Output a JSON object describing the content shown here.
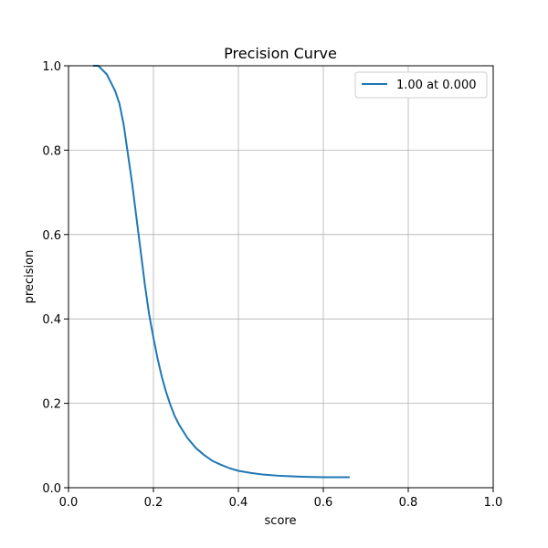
{
  "chart_data": {
    "type": "line",
    "title": "Precision Curve",
    "xlabel": "score",
    "ylabel": "precision",
    "xlim": [
      0.0,
      1.0
    ],
    "ylim": [
      0.0,
      1.0
    ],
    "grid": true,
    "legend_position": "top-right",
    "xticks": [
      0.0,
      0.2,
      0.4,
      0.6,
      0.8,
      1.0
    ],
    "yticks": [
      0.0,
      0.2,
      0.4,
      0.6,
      0.8,
      1.0
    ],
    "xtick_labels": [
      "0.0",
      "0.2",
      "0.4",
      "0.6",
      "0.8",
      "1.0"
    ],
    "ytick_labels": [
      "0.0",
      "0.2",
      "0.4",
      "0.6",
      "0.8",
      "1.0"
    ],
    "series": [
      {
        "name": "1.00 at 0.000",
        "color": "#1f77b4",
        "x": [
          0.06,
          0.07,
          0.08,
          0.09,
          0.1,
          0.11,
          0.12,
          0.13,
          0.14,
          0.15,
          0.16,
          0.17,
          0.18,
          0.19,
          0.2,
          0.21,
          0.22,
          0.23,
          0.24,
          0.25,
          0.26,
          0.28,
          0.3,
          0.32,
          0.34,
          0.36,
          0.38,
          0.4,
          0.43,
          0.46,
          0.5,
          0.55,
          0.6,
          0.66
        ],
        "y": [
          1.0,
          1.0,
          0.99,
          0.98,
          0.96,
          0.94,
          0.91,
          0.86,
          0.79,
          0.72,
          0.64,
          0.56,
          0.48,
          0.41,
          0.355,
          0.305,
          0.262,
          0.226,
          0.196,
          0.17,
          0.15,
          0.118,
          0.094,
          0.077,
          0.063,
          0.054,
          0.046,
          0.04,
          0.035,
          0.031,
          0.028,
          0.026,
          0.025,
          0.025
        ]
      }
    ]
  }
}
